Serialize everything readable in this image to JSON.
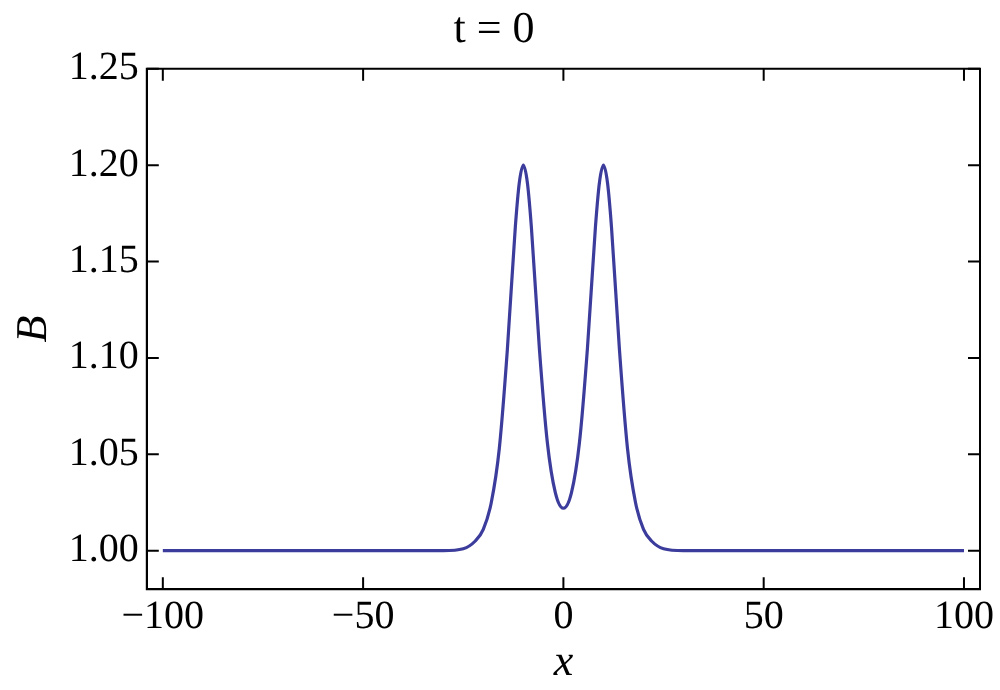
{
  "chart_data": {
    "type": "line",
    "title": "t = 0",
    "xlabel": "x",
    "ylabel": "B",
    "xlim": [
      -104,
      104
    ],
    "ylim": [
      0.98,
      1.25
    ],
    "xticks": [
      {
        "value": -100,
        "label": "−100"
      },
      {
        "value": -50,
        "label": "−50"
      },
      0,
      50,
      100
    ],
    "yticks": [
      {
        "value": 1.0,
        "label": "1.00"
      },
      {
        "value": 1.05,
        "label": "1.05"
      },
      {
        "value": 1.1,
        "label": "1.10"
      },
      {
        "value": 1.15,
        "label": "1.15"
      },
      {
        "value": 1.2,
        "label": "1.20"
      },
      {
        "value": 1.25,
        "label": "1.25"
      }
    ],
    "grid": false,
    "legend": false,
    "marker": "none",
    "line_style": "solid",
    "series": [
      {
        "color": "#3c3c9c",
        "x": [
          -100,
          -40,
          -30,
          -25,
          -22,
          -20,
          -18,
          -16,
          -14,
          -12,
          -11,
          -10,
          -9,
          -8,
          -6,
          -4,
          -2,
          0,
          2,
          4,
          6,
          8,
          9,
          10,
          11,
          12,
          14,
          16,
          18,
          20,
          22,
          25,
          30,
          40,
          100
        ],
        "values": [
          1.0,
          1.0,
          1.0,
          1.001,
          1.005,
          1.011,
          1.025,
          1.053,
          1.104,
          1.168,
          1.191,
          1.2,
          1.191,
          1.168,
          1.105,
          1.056,
          1.03,
          1.022,
          1.03,
          1.056,
          1.105,
          1.168,
          1.191,
          1.2,
          1.191,
          1.168,
          1.104,
          1.053,
          1.025,
          1.011,
          1.005,
          1.001,
          1.0,
          1.0,
          1.0
        ]
      }
    ]
  }
}
